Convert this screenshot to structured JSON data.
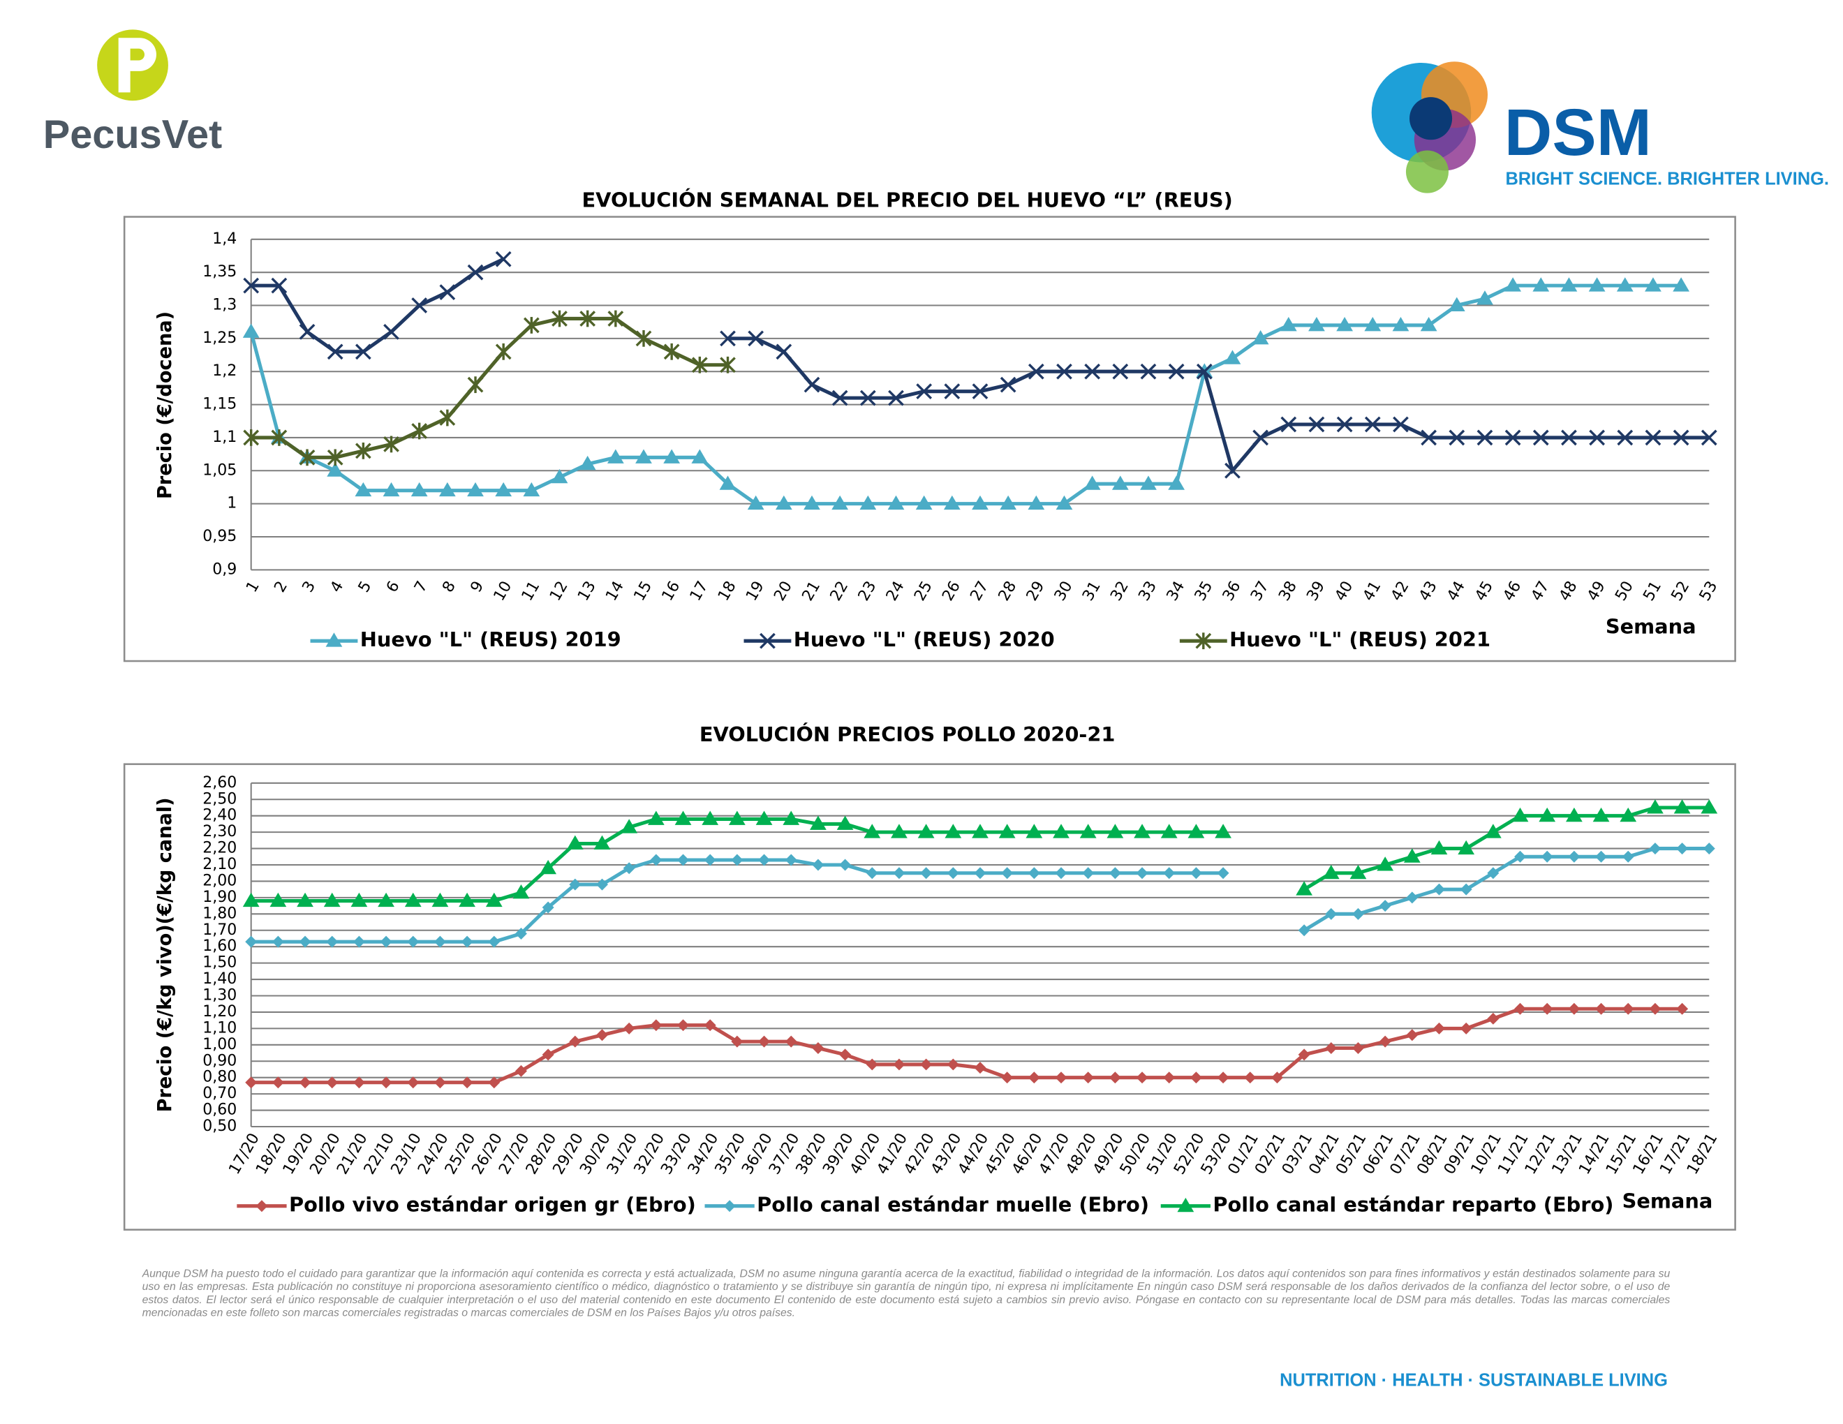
{
  "header": {
    "left_logo": "PecusVet",
    "right_logo": "DSM",
    "tagline": "BRIGHT SCIENCE. BRIGHTER LIVING."
  },
  "chart_data": [
    {
      "type": "line",
      "title": "EVOLUCIÓN SEMANAL DEL PRECIO DEL HUEVO “L” (REUS)",
      "x_label": "Semana",
      "y_label": "Precio (€/docena)",
      "categories": [
        "1",
        "2",
        "3",
        "4",
        "5",
        "6",
        "7",
        "8",
        "9",
        "10",
        "11",
        "12",
        "13",
        "14",
        "15",
        "16",
        "17",
        "18",
        "19",
        "20",
        "21",
        "22",
        "23",
        "24",
        "25",
        "26",
        "27",
        "28",
        "29",
        "30",
        "31",
        "32",
        "33",
        "34",
        "35",
        "36",
        "37",
        "38",
        "39",
        "40",
        "41",
        "42",
        "43",
        "44",
        "45",
        "46",
        "47",
        "48",
        "49",
        "50",
        "51",
        "52",
        "53"
      ],
      "ylim": [
        0.9,
        1.4
      ],
      "yticks": [
        {
          "value": 0.9,
          "label": "0,9"
        },
        {
          "value": 0.95,
          "label": "0,95"
        },
        1,
        {
          "value": 1.05,
          "label": "1,05"
        },
        {
          "value": 1.1,
          "label": "1,1"
        },
        {
          "value": 1.15,
          "label": "1,15"
        },
        {
          "value": 1.2,
          "label": "1,2"
        },
        {
          "value": 1.25,
          "label": "1,25"
        },
        {
          "value": 1.3,
          "label": "1,3"
        },
        {
          "value": 1.35,
          "label": "1,35"
        },
        {
          "value": 1.4,
          "label": "1,4"
        }
      ],
      "grid": true,
      "series": [
        {
          "name": "Huevo \"L\" (REUS) 2019",
          "color": "#4bacc6",
          "marker": "triangle",
          "values": [
            1.26,
            1.1,
            1.07,
            1.05,
            1.02,
            1.02,
            1.02,
            1.02,
            1.02,
            1.02,
            1.02,
            1.04,
            1.06,
            1.07,
            1.07,
            1.07,
            1.07,
            1.03,
            1.0,
            1.0,
            1.0,
            1.0,
            1.0,
            1.0,
            1.0,
            1.0,
            1.0,
            1.0,
            1.0,
            1.0,
            1.03,
            1.03,
            1.03,
            1.03,
            1.2,
            1.22,
            1.25,
            1.27,
            1.27,
            1.27,
            1.27,
            1.27,
            1.27,
            1.3,
            1.31,
            1.33,
            1.33,
            1.33,
            1.33,
            1.33,
            1.33,
            1.33,
            null
          ]
        },
        {
          "name": "Huevo \"L\" (REUS) 2020",
          "color": "#1f3864",
          "marker": "x",
          "values": [
            1.33,
            1.33,
            1.26,
            1.23,
            1.23,
            1.26,
            1.3,
            1.32,
            1.35,
            1.37,
            null,
            null,
            null,
            null,
            null,
            null,
            null,
            1.25,
            1.25,
            1.23,
            1.18,
            1.16,
            1.16,
            1.16,
            1.17,
            1.17,
            1.17,
            1.18,
            1.2,
            1.2,
            1.2,
            1.2,
            1.2,
            1.2,
            1.2,
            1.05,
            1.1,
            1.12,
            1.12,
            1.12,
            1.12,
            1.12,
            1.1,
            1.1,
            1.1,
            1.1,
            1.1,
            1.1,
            1.1,
            1.1,
            1.1,
            1.1,
            1.1
          ]
        },
        {
          "name": "Huevo \"L\" (REUS) 2021",
          "color": "#4f6228",
          "marker": "asterisk",
          "values": [
            1.1,
            1.1,
            1.07,
            1.07,
            1.08,
            1.09,
            1.11,
            1.13,
            1.18,
            1.23,
            1.27,
            1.28,
            1.28,
            1.28,
            1.25,
            1.23,
            1.21,
            1.21,
            null,
            null,
            null,
            null,
            null,
            null,
            null,
            null,
            null,
            null,
            null,
            null,
            null,
            null,
            null,
            null,
            null,
            null,
            null,
            null,
            null,
            null,
            null,
            null,
            null,
            null,
            null,
            null,
            null,
            null,
            null,
            null,
            null,
            null,
            null
          ]
        }
      ]
    },
    {
      "type": "line",
      "title": "EVOLUCIÓN PRECIOS POLLO 2020-21",
      "x_label": "Semana",
      "y_label": "Precio (€/kg vivo)(€/kg canal)",
      "categories": [
        "17/20",
        "18/20",
        "19/20",
        "20/20",
        "21/20",
        "22/10",
        "23/10",
        "24/20",
        "25/20",
        "26/20",
        "27/20",
        "28/20",
        "29/20",
        "30/20",
        "31/20",
        "32/20",
        "33/20",
        "34/20",
        "35/20",
        "36/20",
        "37/20",
        "38/20",
        "39/20",
        "40/20",
        "41/20",
        "42/20",
        "43/20",
        "44/20",
        "45/20",
        "46/20",
        "47/20",
        "48/20",
        "49/20",
        "50/20",
        "51/20",
        "52/20",
        "53/20",
        "01/21",
        "02/21",
        "03/21",
        "04/21",
        "05/21",
        "06/21",
        "07/21",
        "08/21",
        "09/21",
        "10/21",
        "11/21",
        "12/21",
        "13/21",
        "14/21",
        "15/21",
        "16/21",
        "17/21",
        "18/21"
      ],
      "ylim": [
        0.5,
        2.6
      ],
      "yticks": [
        {
          "value": 0.5,
          "label": "0,50"
        },
        {
          "value": 0.6,
          "label": "0,60"
        },
        {
          "value": 0.7,
          "label": "0,70"
        },
        {
          "value": 0.8,
          "label": "0,80"
        },
        {
          "value": 0.9,
          "label": "0,90"
        },
        {
          "value": 1.0,
          "label": "1,00"
        },
        {
          "value": 1.1,
          "label": "1,10"
        },
        {
          "value": 1.2,
          "label": "1,20"
        },
        {
          "value": 1.3,
          "label": "1,30"
        },
        {
          "value": 1.4,
          "label": "1,40"
        },
        {
          "value": 1.5,
          "label": "1,50"
        },
        {
          "value": 1.6,
          "label": "1,60"
        },
        {
          "value": 1.7,
          "label": "1,70"
        },
        {
          "value": 1.8,
          "label": "1,80"
        },
        {
          "value": 1.9,
          "label": "1,90"
        },
        {
          "value": 2.0,
          "label": "2,00"
        },
        {
          "value": 2.1,
          "label": "2,10"
        },
        {
          "value": 2.2,
          "label": "2,20"
        },
        {
          "value": 2.3,
          "label": "2,30"
        },
        {
          "value": 2.4,
          "label": "2,40"
        },
        {
          "value": 2.5,
          "label": "2,50"
        },
        {
          "value": 2.6,
          "label": "2,60"
        }
      ],
      "grid": true,
      "series": [
        {
          "name": "Pollo vivo estándar origen gr (Ebro)",
          "color": "#c0504d",
          "marker": "diamond",
          "values": [
            0.77,
            0.77,
            0.77,
            0.77,
            0.77,
            0.77,
            0.77,
            0.77,
            0.77,
            0.77,
            0.84,
            0.94,
            1.02,
            1.06,
            1.1,
            1.12,
            1.12,
            1.12,
            1.02,
            1.02,
            1.02,
            0.98,
            0.94,
            0.88,
            0.88,
            0.88,
            0.88,
            0.86,
            0.8,
            0.8,
            0.8,
            0.8,
            0.8,
            0.8,
            0.8,
            0.8,
            0.8,
            0.8,
            0.8,
            0.94,
            0.98,
            0.98,
            1.02,
            1.06,
            1.1,
            1.1,
            1.16,
            1.22,
            1.22,
            1.22,
            1.22,
            1.22,
            1.22,
            1.22,
            null
          ]
        },
        {
          "name": "Pollo canal estándar muelle (Ebro)",
          "color": "#4bacc6",
          "marker": "diamond",
          "values": [
            1.63,
            1.63,
            1.63,
            1.63,
            1.63,
            1.63,
            1.63,
            1.63,
            1.63,
            1.63,
            1.68,
            1.84,
            1.98,
            1.98,
            2.08,
            2.13,
            2.13,
            2.13,
            2.13,
            2.13,
            2.13,
            2.1,
            2.1,
            2.05,
            2.05,
            2.05,
            2.05,
            2.05,
            2.05,
            2.05,
            2.05,
            2.05,
            2.05,
            2.05,
            2.05,
            2.05,
            2.05,
            null,
            null,
            1.7,
            1.8,
            1.8,
            1.85,
            1.9,
            1.95,
            1.95,
            2.05,
            2.15,
            2.15,
            2.15,
            2.15,
            2.15,
            2.2,
            2.2,
            2.2
          ]
        },
        {
          "name": "Pollo canal estándar reparto (Ebro)",
          "color": "#00b050",
          "marker": "triangle",
          "values": [
            1.88,
            1.88,
            1.88,
            1.88,
            1.88,
            1.88,
            1.88,
            1.88,
            1.88,
            1.88,
            1.93,
            2.08,
            2.23,
            2.23,
            2.33,
            2.38,
            2.38,
            2.38,
            2.38,
            2.38,
            2.38,
            2.35,
            2.35,
            2.3,
            2.3,
            2.3,
            2.3,
            2.3,
            2.3,
            2.3,
            2.3,
            2.3,
            2.3,
            2.3,
            2.3,
            2.3,
            2.3,
            null,
            null,
            1.95,
            2.05,
            2.05,
            2.1,
            2.15,
            2.2,
            2.2,
            2.3,
            2.4,
            2.4,
            2.4,
            2.4,
            2.4,
            2.45,
            2.45,
            2.45
          ]
        }
      ]
    }
  ],
  "disclaimer": "Aunque DSM ha puesto todo el cuidado para garantizar que la información aquí contenida es correcta y está actualizada, DSM no asume ninguna garantía acerca de la exactitud, fiabilidad o integridad de la información. Los datos aquí contenidos son para fines informativos y están destinados solamente para su uso en las empresas. Esta publicación no constituye ni proporciona asesoramiento científico o médico, diagnóstico o tratamiento y se distribuye sin garantía de ningún tipo, ni expresa ni implícitamente En ningún caso DSM será responsable de los daños derivados de la confianza del lector sobre, o el uso de estos datos. El lector será el único responsable de cualquier interpretación o el uso del material contenido en este documento El contenido de este documento está sujeto a cambios sin previo aviso. Póngase en contacto con su representante local de DSM para más detalles. Todas las marcas comerciales mencionadas en este folleto son marcas comerciales registradas o marcas comerciales de DSM en los Países Bajos y/u otros países.",
  "footer": "NUTRITION · HEALTH · SUSTAINABLE LIVING"
}
